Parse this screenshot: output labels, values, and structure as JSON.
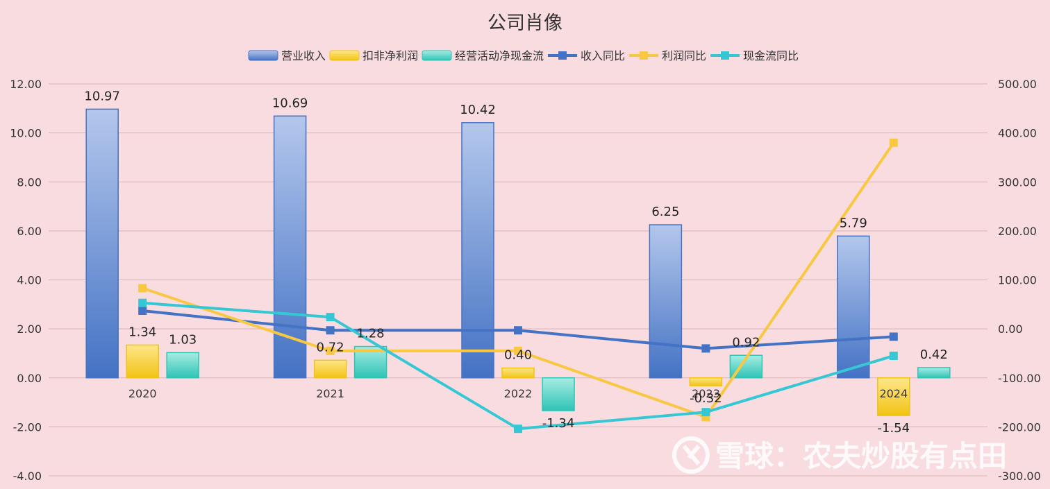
{
  "chart_data": {
    "type": "bar",
    "title": "公司肖像",
    "categories": [
      "2020",
      "2021",
      "2022",
      "2023",
      "2024"
    ],
    "bar_series": [
      {
        "name": "营业收入",
        "values": [
          10.97,
          10.69,
          10.42,
          6.25,
          5.79
        ],
        "color": "#4472c4",
        "color_light": "#b4c7ec"
      },
      {
        "name": "扣非净利润",
        "values": [
          1.34,
          0.72,
          0.4,
          -0.32,
          -1.54
        ],
        "color": "#f2c314",
        "color_light": "#fde68a"
      },
      {
        "name": "经营活动净现金流",
        "values": [
          1.03,
          1.28,
          -1.34,
          0.92,
          0.42
        ],
        "color": "#2ec4b6",
        "color_light": "#a8ece3"
      }
    ],
    "line_series": [
      {
        "name": "收入同比",
        "values": [
          37,
          -3,
          -3,
          -40,
          -16
        ],
        "color": "#4472c4"
      },
      {
        "name": "利润同比",
        "values": [
          83,
          -45,
          -45,
          -180,
          380
        ],
        "color": "#f8c842"
      },
      {
        "name": "现金流同比",
        "values": [
          53,
          24,
          -204,
          -170,
          -55
        ],
        "color": "#36c7d4"
      }
    ],
    "y_left": {
      "min": -4,
      "max": 12,
      "ticks": [
        "-4.00",
        "-2.00",
        "0.00",
        "2.00",
        "4.00",
        "6.00",
        "8.00",
        "10.00",
        "12.00"
      ]
    },
    "y_right": {
      "min": -300,
      "max": 500,
      "ticks": [
        "-300.00",
        "-200.00",
        "-100.00",
        "0.00",
        "100.00",
        "200.00",
        "300.00",
        "400.00",
        "500.00"
      ]
    },
    "grid": true,
    "legend_position": "top-center"
  },
  "watermark": "雪球：农夫炒股有点田"
}
